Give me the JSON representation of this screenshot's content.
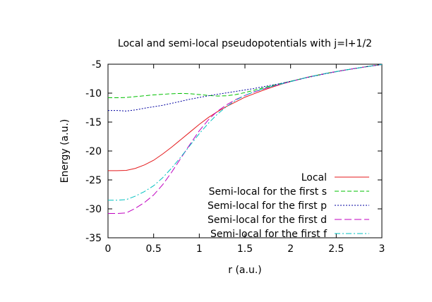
{
  "chart_data": {
    "type": "line",
    "title": "Local and semi-local pseudopotentials with j=l+1/2",
    "xlabel": "r (a.u.)",
    "ylabel": "Energy (a.u.)",
    "xlim": [
      0,
      3
    ],
    "ylim": [
      -35,
      -5
    ],
    "xticks": [
      0,
      0.5,
      1,
      1.5,
      2,
      2.5,
      3
    ],
    "xtick_labels": [
      "0",
      "0.5",
      "1",
      "1.5",
      "2",
      "2.5",
      "3"
    ],
    "yticks": [
      -35,
      -30,
      -25,
      -20,
      -15,
      -10,
      -5
    ],
    "ytick_labels": [
      "-35",
      "-30",
      "-25",
      "-20",
      "-15",
      "-10",
      "-5"
    ],
    "grid": false,
    "legend_position": "bottom-right",
    "series": [
      {
        "name": "Local",
        "color": "#e41a1c",
        "dash": "solid",
        "x": [
          0,
          0.1,
          0.2,
          0.3,
          0.4,
          0.5,
          0.6,
          0.7,
          0.8,
          0.9,
          1.0,
          1.1,
          1.2,
          1.3,
          1.4,
          1.5,
          1.6,
          1.7,
          1.8,
          1.9,
          2.0,
          2.2,
          2.4,
          2.6,
          2.8,
          3.0
        ],
        "y": [
          -23.4,
          -23.4,
          -23.35,
          -23.0,
          -22.4,
          -21.6,
          -20.5,
          -19.3,
          -18.0,
          -16.7,
          -15.4,
          -14.2,
          -13.2,
          -12.3,
          -11.5,
          -10.7,
          -10.1,
          -9.5,
          -8.95,
          -8.45,
          -8.0,
          -7.2,
          -6.55,
          -6.0,
          -5.5,
          -5.05
        ]
      },
      {
        "name": "Semi-local for the first s",
        "color": "#00c000",
        "dash": "dash",
        "x": [
          0,
          0.1,
          0.2,
          0.3,
          0.4,
          0.5,
          0.6,
          0.7,
          0.8,
          0.9,
          1.0,
          1.1,
          1.2,
          1.3,
          1.4,
          1.5,
          1.6,
          1.7,
          1.8,
          1.9,
          2.0,
          2.2,
          2.4,
          2.6,
          2.8,
          3.0
        ],
        "y": [
          -10.8,
          -10.8,
          -10.75,
          -10.6,
          -10.45,
          -10.3,
          -10.2,
          -10.1,
          -10.05,
          -10.1,
          -10.25,
          -10.4,
          -10.5,
          -10.45,
          -10.25,
          -9.9,
          -9.5,
          -9.1,
          -8.7,
          -8.3,
          -7.95,
          -7.2,
          -6.55,
          -6.0,
          -5.5,
          -5.05
        ]
      },
      {
        "name": "Semi-local for the first p",
        "color": "#0000a0",
        "dash": "dot",
        "x": [
          0,
          0.1,
          0.2,
          0.3,
          0.4,
          0.5,
          0.6,
          0.7,
          0.8,
          0.9,
          1.0,
          1.1,
          1.2,
          1.3,
          1.4,
          1.5,
          1.6,
          1.7,
          1.8,
          1.9,
          2.0,
          2.2,
          2.4,
          2.6,
          2.8,
          3.0
        ],
        "y": [
          -13.0,
          -13.0,
          -13.1,
          -12.9,
          -12.6,
          -12.35,
          -12.1,
          -11.75,
          -11.4,
          -11.05,
          -10.75,
          -10.45,
          -10.2,
          -9.95,
          -9.7,
          -9.45,
          -9.2,
          -8.9,
          -8.6,
          -8.3,
          -7.95,
          -7.25,
          -6.6,
          -6.0,
          -5.5,
          -5.05
        ]
      },
      {
        "name": "Semi-local for the first d",
        "color": "#c000c0",
        "dash": "longdash",
        "x": [
          0,
          0.1,
          0.2,
          0.3,
          0.4,
          0.5,
          0.6,
          0.7,
          0.8,
          0.9,
          1.0,
          1.1,
          1.2,
          1.3,
          1.4,
          1.5,
          1.6,
          1.7,
          1.8,
          1.9,
          2.0,
          2.2,
          2.4,
          2.6,
          2.8,
          3.0
        ],
        "y": [
          -30.8,
          -30.8,
          -30.7,
          -29.9,
          -28.9,
          -27.6,
          -25.8,
          -23.6,
          -21.2,
          -18.8,
          -16.5,
          -14.6,
          -13.1,
          -12.0,
          -11.1,
          -10.4,
          -9.8,
          -9.3,
          -8.85,
          -8.4,
          -8.0,
          -7.2,
          -6.55,
          -6.0,
          -5.5,
          -5.05
        ]
      },
      {
        "name": "Semi-local for the first f",
        "color": "#00c0c0",
        "dash": "dashdot",
        "x": [
          0,
          0.1,
          0.2,
          0.3,
          0.4,
          0.5,
          0.6,
          0.7,
          0.8,
          0.9,
          1.0,
          1.1,
          1.2,
          1.3,
          1.4,
          1.5,
          1.6,
          1.7,
          1.8,
          1.9,
          2.0,
          2.2,
          2.4,
          2.6,
          2.8,
          3.0
        ],
        "y": [
          -28.5,
          -28.5,
          -28.4,
          -27.8,
          -27.0,
          -26.0,
          -24.6,
          -22.9,
          -21.0,
          -19.0,
          -17.0,
          -15.2,
          -13.6,
          -12.3,
          -11.2,
          -10.4,
          -9.75,
          -9.25,
          -8.8,
          -8.4,
          -8.0,
          -7.2,
          -6.55,
          -6.0,
          -5.5,
          -5.05
        ]
      }
    ]
  }
}
